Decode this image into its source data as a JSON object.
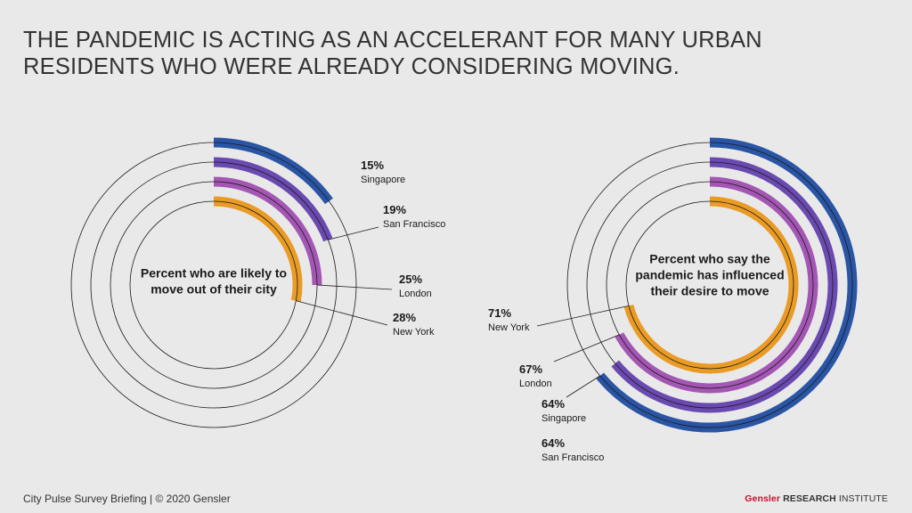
{
  "title": {
    "line1": "THE PANDEMIC IS ACTING AS AN ACCELERANT FOR MANY URBAN",
    "line2": "RESIDENTS WHO WERE ALREADY CONSIDERING MOVING."
  },
  "footer": {
    "left": "City Pulse Survey Briefing  |  © 2020 Gensler",
    "brand": "Gensler",
    "research": "RESEARCH",
    "institute": "INSTITUTE"
  },
  "colors": {
    "Singapore": "#2a55a5",
    "San Francisco": "#6a4ab0",
    "London": "#a456b4",
    "New York": "#e99b25"
  },
  "chart_data": [
    {
      "type": "radial-bar",
      "title": [
        "Percent who are likely to",
        "move out of their city"
      ],
      "unit": "%",
      "max": 100,
      "series": [
        {
          "name": "Singapore",
          "value": 15
        },
        {
          "name": "San Francisco",
          "value": 19
        },
        {
          "name": "London",
          "value": 25
        },
        {
          "name": "New York",
          "value": 28
        }
      ]
    },
    {
      "type": "radial-bar",
      "title": [
        "Percent who say the",
        "pandemic has influenced",
        "their desire to move"
      ],
      "unit": "%",
      "max": 100,
      "series": [
        {
          "name": "Singapore",
          "value": 64
        },
        {
          "name": "San Francisco",
          "value": 64
        },
        {
          "name": "London",
          "value": 67
        },
        {
          "name": "New York",
          "value": 71
        }
      ]
    }
  ]
}
